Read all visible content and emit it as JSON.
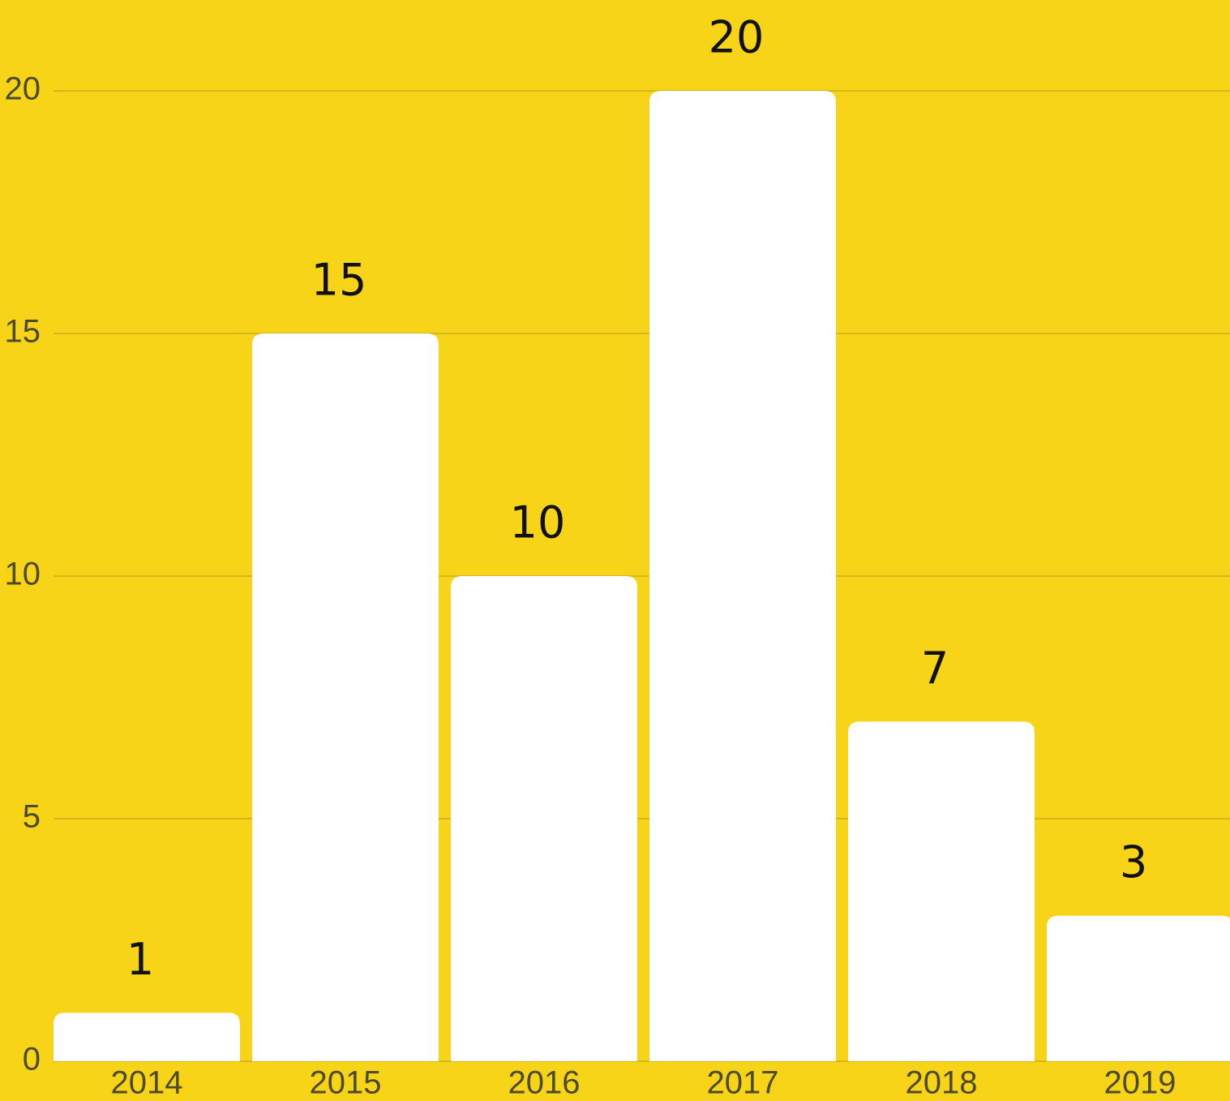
{
  "chart_data": {
    "type": "bar",
    "categories": [
      "2014",
      "2015",
      "2016",
      "2017",
      "2018",
      "2019"
    ],
    "values": [
      1,
      15,
      10,
      20,
      7,
      3
    ],
    "color": "#ffffff",
    "ylim": [
      0,
      20
    ],
    "yticks": [
      0,
      5,
      10,
      15,
      20
    ],
    "grid": true
  }
}
